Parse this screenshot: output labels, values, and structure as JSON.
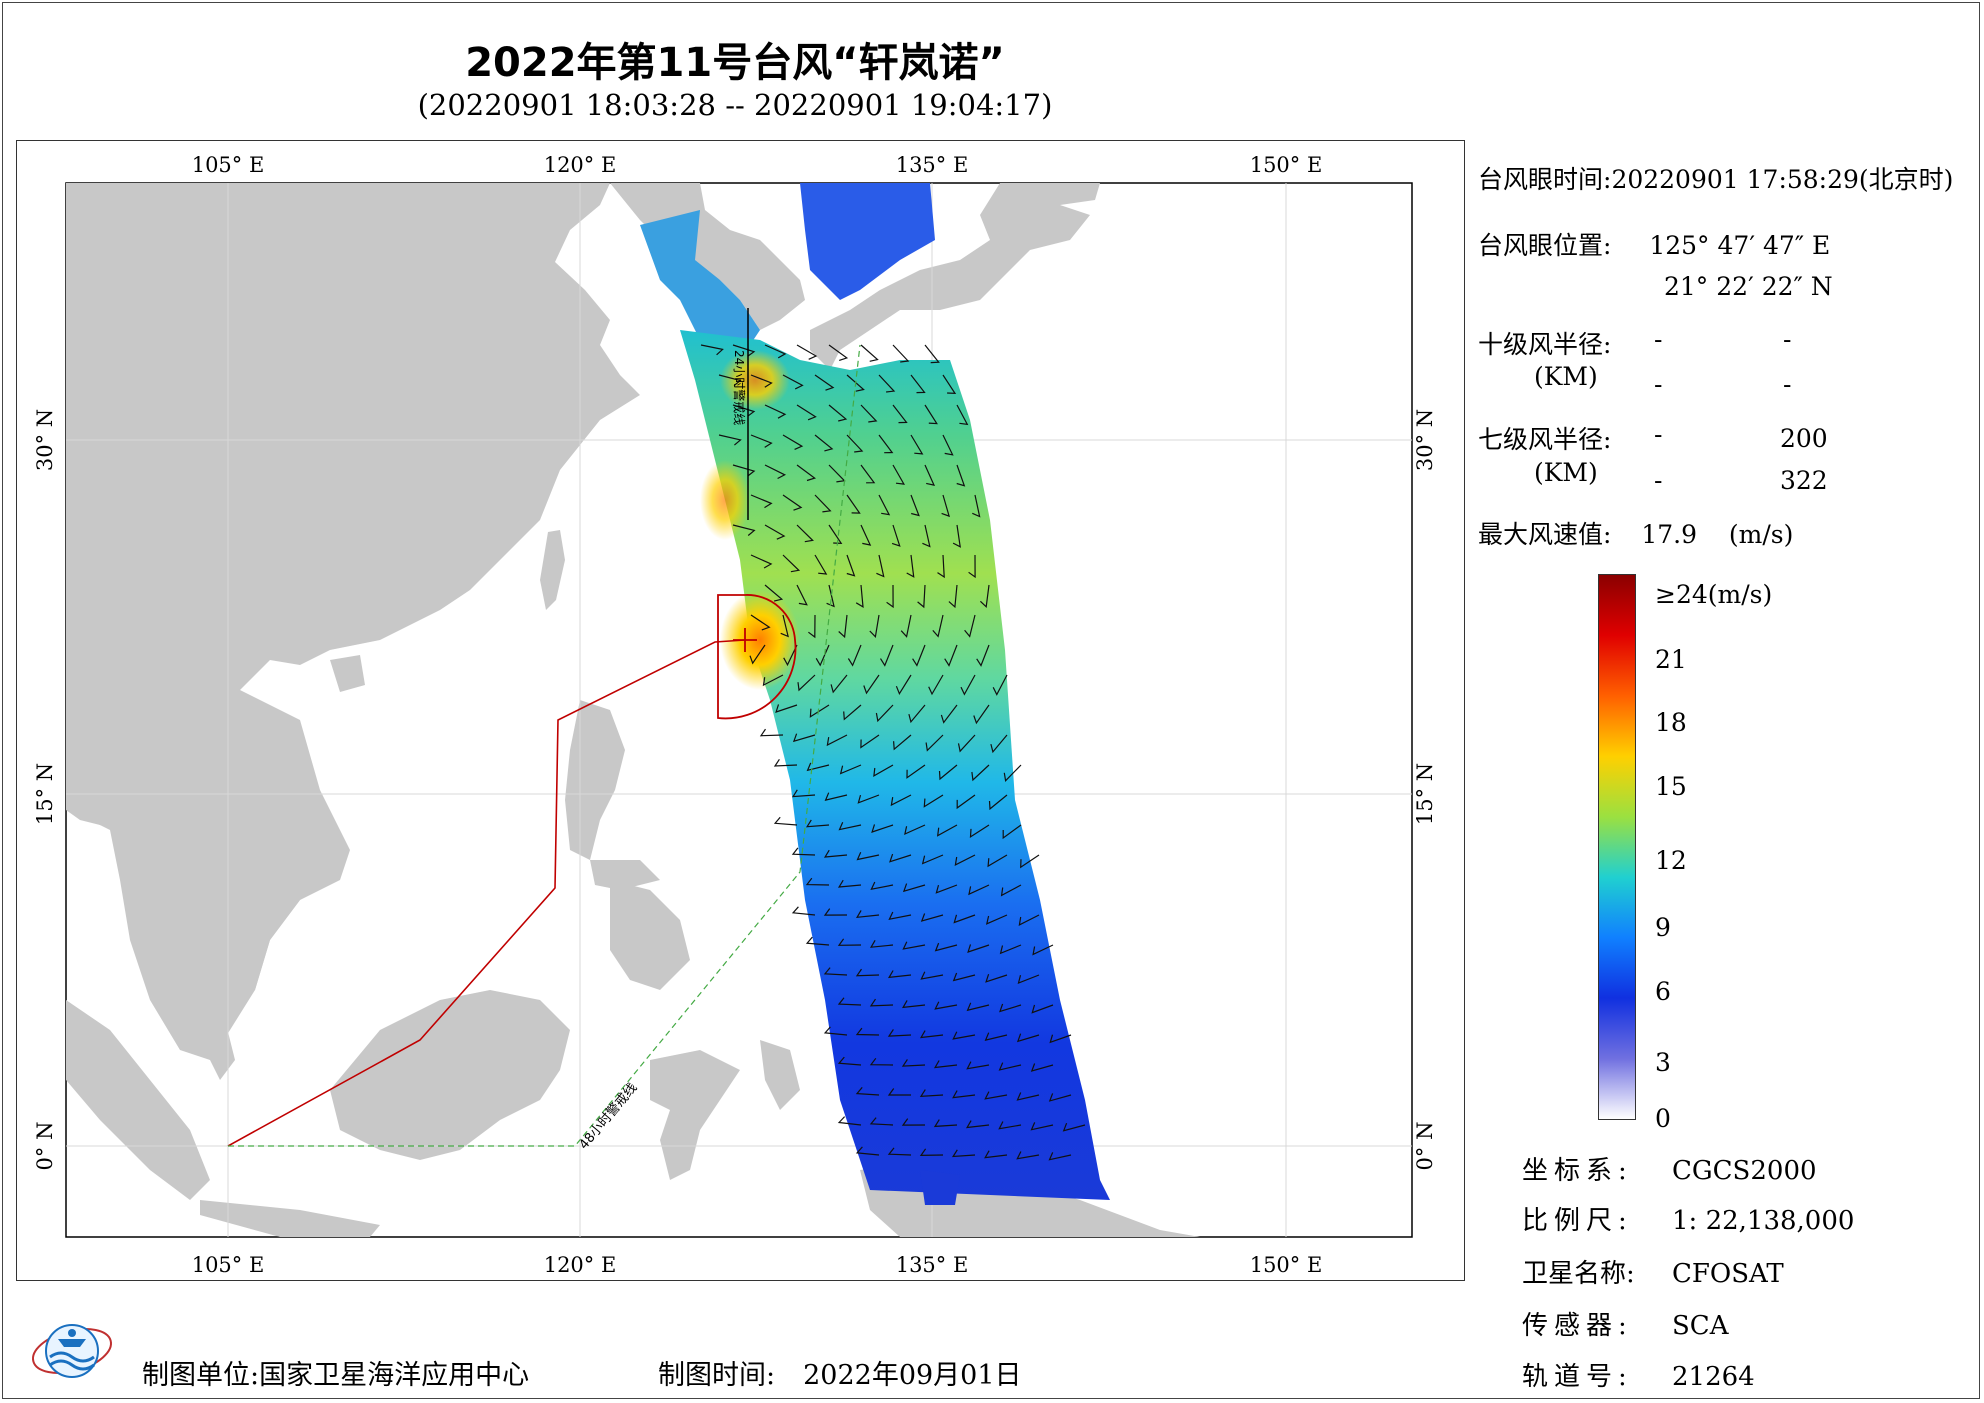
{
  "title": "2022年第11号台风“轩岚诺”",
  "subtitle": "(20220901 18:03:28 -- 20220901 19:04:17)",
  "map": {
    "lon_ticks": [
      "105° E",
      "120° E",
      "135° E",
      "150° E"
    ],
    "lat_ticks": [
      "30° N",
      "15° N",
      "0° N"
    ],
    "warning_48h_label": "48小时警戒线",
    "warning_24h_label": "24小时警戒线",
    "colors": {
      "land": "#c8c8c8",
      "sea": "#ffffff",
      "warning_24h": "#c00000",
      "warning_48h": "#44aa44"
    }
  },
  "info": {
    "eye_time_label": "台风眼时间:",
    "eye_time_value": "20220901 17:58:29(北京时)",
    "eye_pos_label": "台风眼位置:",
    "eye_lon": "125° 47′ 47″ E",
    "eye_lat": "21° 22′ 22″ N",
    "r10_label": "十级风半径:",
    "r10_unit": "(KM)",
    "r10_values": [
      "-",
      "-",
      "-",
      "-"
    ],
    "r7_label": "七级风半径:",
    "r7_unit": "(KM)",
    "r7_values": [
      "-",
      "200",
      "-",
      "322"
    ],
    "max_wind_label": "最大风速值:",
    "max_wind_value": "17.9",
    "max_wind_unit": "(m/s)"
  },
  "colorbar": {
    "labels": [
      "≥24(m/s)",
      "21",
      "18",
      "15",
      "12",
      "9",
      "6",
      "3",
      "0"
    ],
    "stops": [
      "#8b0000",
      "#e00000",
      "#ff6000",
      "#ffd000",
      "#9be040",
      "#20d0d0",
      "#1080ff",
      "#1030e0",
      "#7070e0",
      "#ffffff"
    ]
  },
  "meta": {
    "crs_label": "坐标系:",
    "crs_value": "CGCS2000",
    "scale_label": "比例尺:",
    "scale_value": "1: 22,138,000",
    "satellite_label": "卫星名称:",
    "satellite_value": "CFOSAT",
    "sensor_label": "传感器:",
    "sensor_value": "SCA",
    "orbit_label": "轨道号:",
    "orbit_value": "21264"
  },
  "footer": {
    "unit_label": "制图单位:",
    "unit_value": "国家卫星海洋应用中心",
    "time_label": "制图时间:",
    "time_value": "2022年09月01日"
  }
}
